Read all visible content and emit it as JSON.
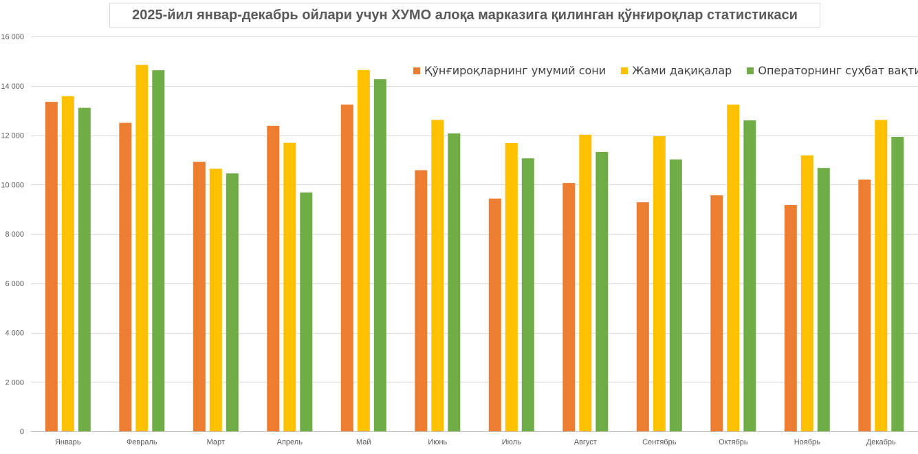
{
  "chart_data": {
    "type": "bar",
    "title": "2025-йил январ-декабрь ойлари учун ХУМО алоқа марказига қилинган қўнғироқлар статистикаси",
    "categories": [
      "Январь",
      "Февраль",
      "Март",
      "Апрель",
      "Май",
      "Июнь",
      "Июль",
      "Август",
      "Сентябрь",
      "Октябрь",
      "Ноябрь",
      "Декабрь"
    ],
    "series": [
      {
        "name": "Қўнғироқларнинг умумий сони",
        "color": "#ed7d31",
        "values": [
          13350,
          12500,
          10920,
          12380,
          13240,
          10580,
          9430,
          10060,
          9280,
          9560,
          9170,
          10200
        ]
      },
      {
        "name": "Жами дақиқалар",
        "color": "#ffc000",
        "values": [
          13580,
          14850,
          10640,
          11690,
          14640,
          12620,
          11680,
          12020,
          11960,
          13240,
          11180,
          12620
        ]
      },
      {
        "name": "Операторнинг суҳбат вақти",
        "color": "#70ad47",
        "values": [
          13110,
          14630,
          10450,
          9680,
          14270,
          12070,
          11060,
          11320,
          11020,
          12600,
          10670,
          11930
        ]
      }
    ],
    "ylim": [
      0,
      16000
    ],
    "yticks": [
      0,
      2000,
      4000,
      6000,
      8000,
      10000,
      12000,
      14000,
      16000
    ],
    "ytick_labels": [
      "0",
      "2 000",
      "4 000",
      "6 000",
      "8 000",
      "10 000",
      "12 000",
      "14 000",
      "16 000"
    ],
    "xlabel": "",
    "ylabel": "",
    "grid": true,
    "legend_position": "top-right"
  }
}
